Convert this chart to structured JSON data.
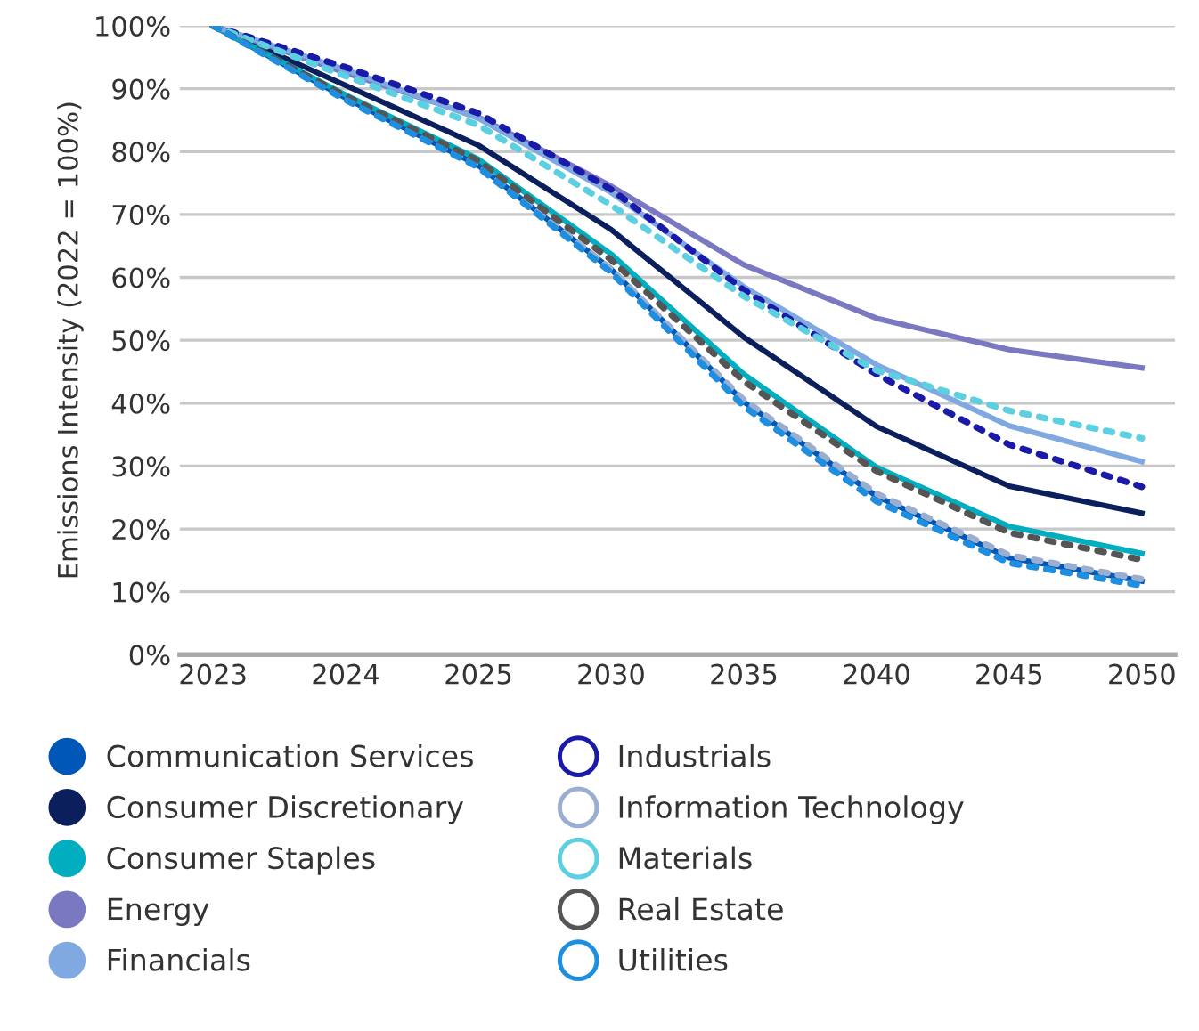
{
  "chart_data": {
    "type": "line",
    "ylabel": "Emissions Intensity (2022 = 100%)",
    "categories": [
      "2023",
      "2024",
      "2025",
      "2030",
      "2035",
      "2040",
      "2045",
      "2050"
    ],
    "ylim": [
      0,
      100
    ],
    "yticks": [
      {
        "value": 0,
        "label": "0%"
      },
      {
        "value": 10,
        "label": "10%"
      },
      {
        "value": 20,
        "label": "20%"
      },
      {
        "value": 30,
        "label": "30%"
      },
      {
        "value": 40,
        "label": "40%"
      },
      {
        "value": 50,
        "label": "50%"
      },
      {
        "value": 60,
        "label": "60%"
      },
      {
        "value": 70,
        "label": "70%"
      },
      {
        "value": 80,
        "label": "80%"
      },
      {
        "value": 90,
        "label": "90%"
      },
      {
        "value": 100,
        "label": "100%"
      }
    ],
    "grid": "y",
    "legend": "bottom",
    "marker": "none",
    "series": [
      {
        "name": "Communication Services",
        "color": "#0057b8",
        "line_style": "solid",
        "values": [
          100,
          88.5,
          77.8,
          61.3,
          40.2,
          25.2,
          15.4,
          11.7
        ]
      },
      {
        "name": "Consumer Discretionary",
        "color": "#0b1f5c",
        "line_style": "solid",
        "values": [
          100,
          90.5,
          81,
          67.6,
          50.5,
          36.3,
          26.8,
          22.5
        ]
      },
      {
        "name": "Consumer Staples",
        "color": "#00aebf",
        "line_style": "solid",
        "values": [
          100,
          89,
          78.8,
          63.7,
          44.6,
          29.8,
          20.4,
          16.1
        ]
      },
      {
        "name": "Energy",
        "color": "#7b78c2",
        "line_style": "solid",
        "values": [
          100,
          92.5,
          85.5,
          74.5,
          62,
          53.5,
          48.5,
          45.6
        ]
      },
      {
        "name": "Financials",
        "color": "#7fa9e0",
        "line_style": "solid",
        "values": [
          100,
          93,
          85.3,
          73.5,
          58.5,
          46.1,
          36.4,
          30.7
        ]
      },
      {
        "name": "Industrials",
        "color": "#1a1aa8",
        "line_style": "dotted",
        "values": [
          100,
          93.4,
          86.1,
          74,
          58,
          44.6,
          33.4,
          26.7
        ]
      },
      {
        "name": "Information Technology",
        "color": "#9aaed0",
        "line_style": "dotted",
        "values": [
          100,
          88.5,
          77.8,
          61.3,
          40.5,
          25.6,
          15.8,
          12
        ]
      },
      {
        "name": "Materials",
        "color": "#5cd0e0",
        "line_style": "dotted",
        "values": [
          100,
          92,
          84.2,
          71.5,
          57,
          45.2,
          38.8,
          34.4
        ]
      },
      {
        "name": "Real Estate",
        "color": "#555555",
        "line_style": "dotted",
        "values": [
          100,
          88.8,
          78.5,
          62.8,
          43.5,
          29.2,
          19.4,
          15.1
        ]
      },
      {
        "name": "Utilities",
        "color": "#1e8fe0",
        "line_style": "dotted",
        "values": [
          100,
          88.2,
          77.5,
          60.8,
          39.5,
          24.4,
          14.6,
          11
        ]
      }
    ]
  }
}
